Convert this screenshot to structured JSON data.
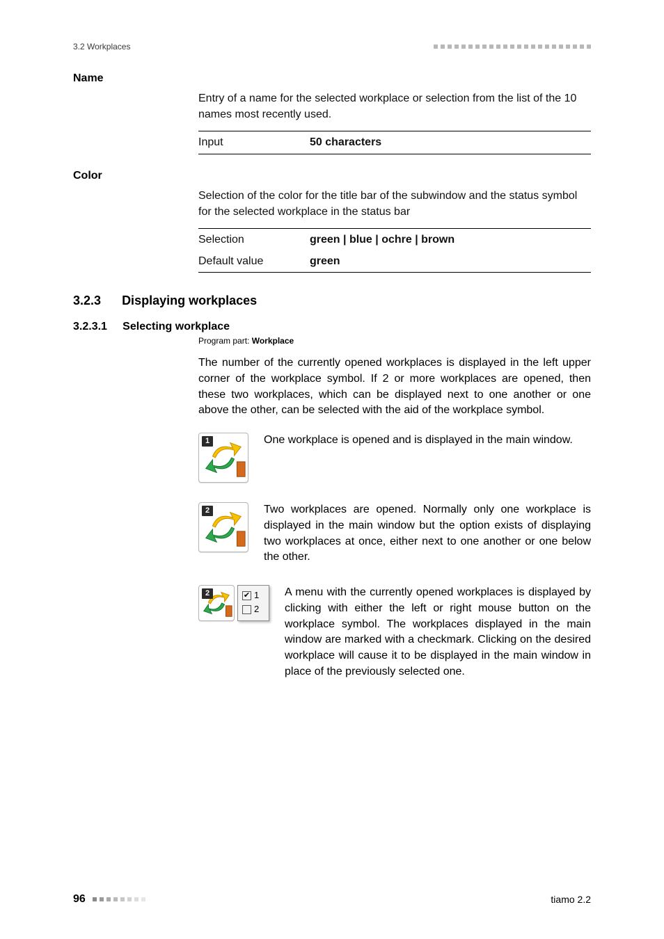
{
  "header": {
    "section": "3.2 Workplaces",
    "dot_count": 23,
    "dot_color": "#b8b8b8"
  },
  "name_field": {
    "label": "Name",
    "description": "Entry of a name for the selected workplace or selection from the list of the 10 names most recently used.",
    "rows": [
      {
        "key": "Input",
        "value": "50 characters"
      }
    ]
  },
  "color_field": {
    "label": "Color",
    "description": "Selection of the color for the title bar of the subwindow and the status symbol for the selected workplace in the status bar",
    "rows": [
      {
        "key": "Selection",
        "value": "green | blue | ochre | brown"
      },
      {
        "key": "Default value",
        "value": "green"
      }
    ]
  },
  "section": {
    "number": "3.2.3",
    "title": "Displaying workplaces"
  },
  "subsection": {
    "number": "3.2.3.1",
    "title": "Selecting workplace",
    "program_part_label": "Program part:",
    "program_part_value": "Workplace",
    "intro": "The number of the currently opened workplaces is displayed in the left upper corner of the workplace symbol. If 2 or more workplaces are opened, then these two workplaces, which can be displayed next to one another or one above the other, can be selected with the aid of the workplace symbol."
  },
  "icon_entries": [
    {
      "badge": "1",
      "text": "One workplace is opened and is displayed in the main window."
    },
    {
      "badge": "2",
      "text": "Two workplaces are opened. Normally only one workplace is displayed in the main window but the option exists of displaying two workplaces at once, either next to one another or one below the other."
    },
    {
      "badge": "2",
      "menu": [
        {
          "checked": true,
          "label": "1"
        },
        {
          "checked": false,
          "label": "2"
        }
      ],
      "text": "A menu with the currently opened workplaces is displayed by clicking with either the left or right mouse button on the workplace symbol. The workplaces displayed in the main window are marked with a checkmark. Clicking on the desired workplace will cause it to be displayed in the main window in place of the previously selected one."
    }
  ],
  "icon_colors": {
    "arrow_up": "#f5c300",
    "arrow_up_dark": "#cc8a00",
    "arrow_down": "#2fa84f",
    "arrow_down_dark": "#11772c",
    "flag": "#d36a1c"
  },
  "footer": {
    "page": "96",
    "dots": [
      "#8a8a8a",
      "#9a9a9a",
      "#aaaaaa",
      "#bababa",
      "#c6c6c6",
      "#d2d2d2",
      "#dcdcdc",
      "#e6e6e6"
    ],
    "product": "tiamo 2.2"
  }
}
